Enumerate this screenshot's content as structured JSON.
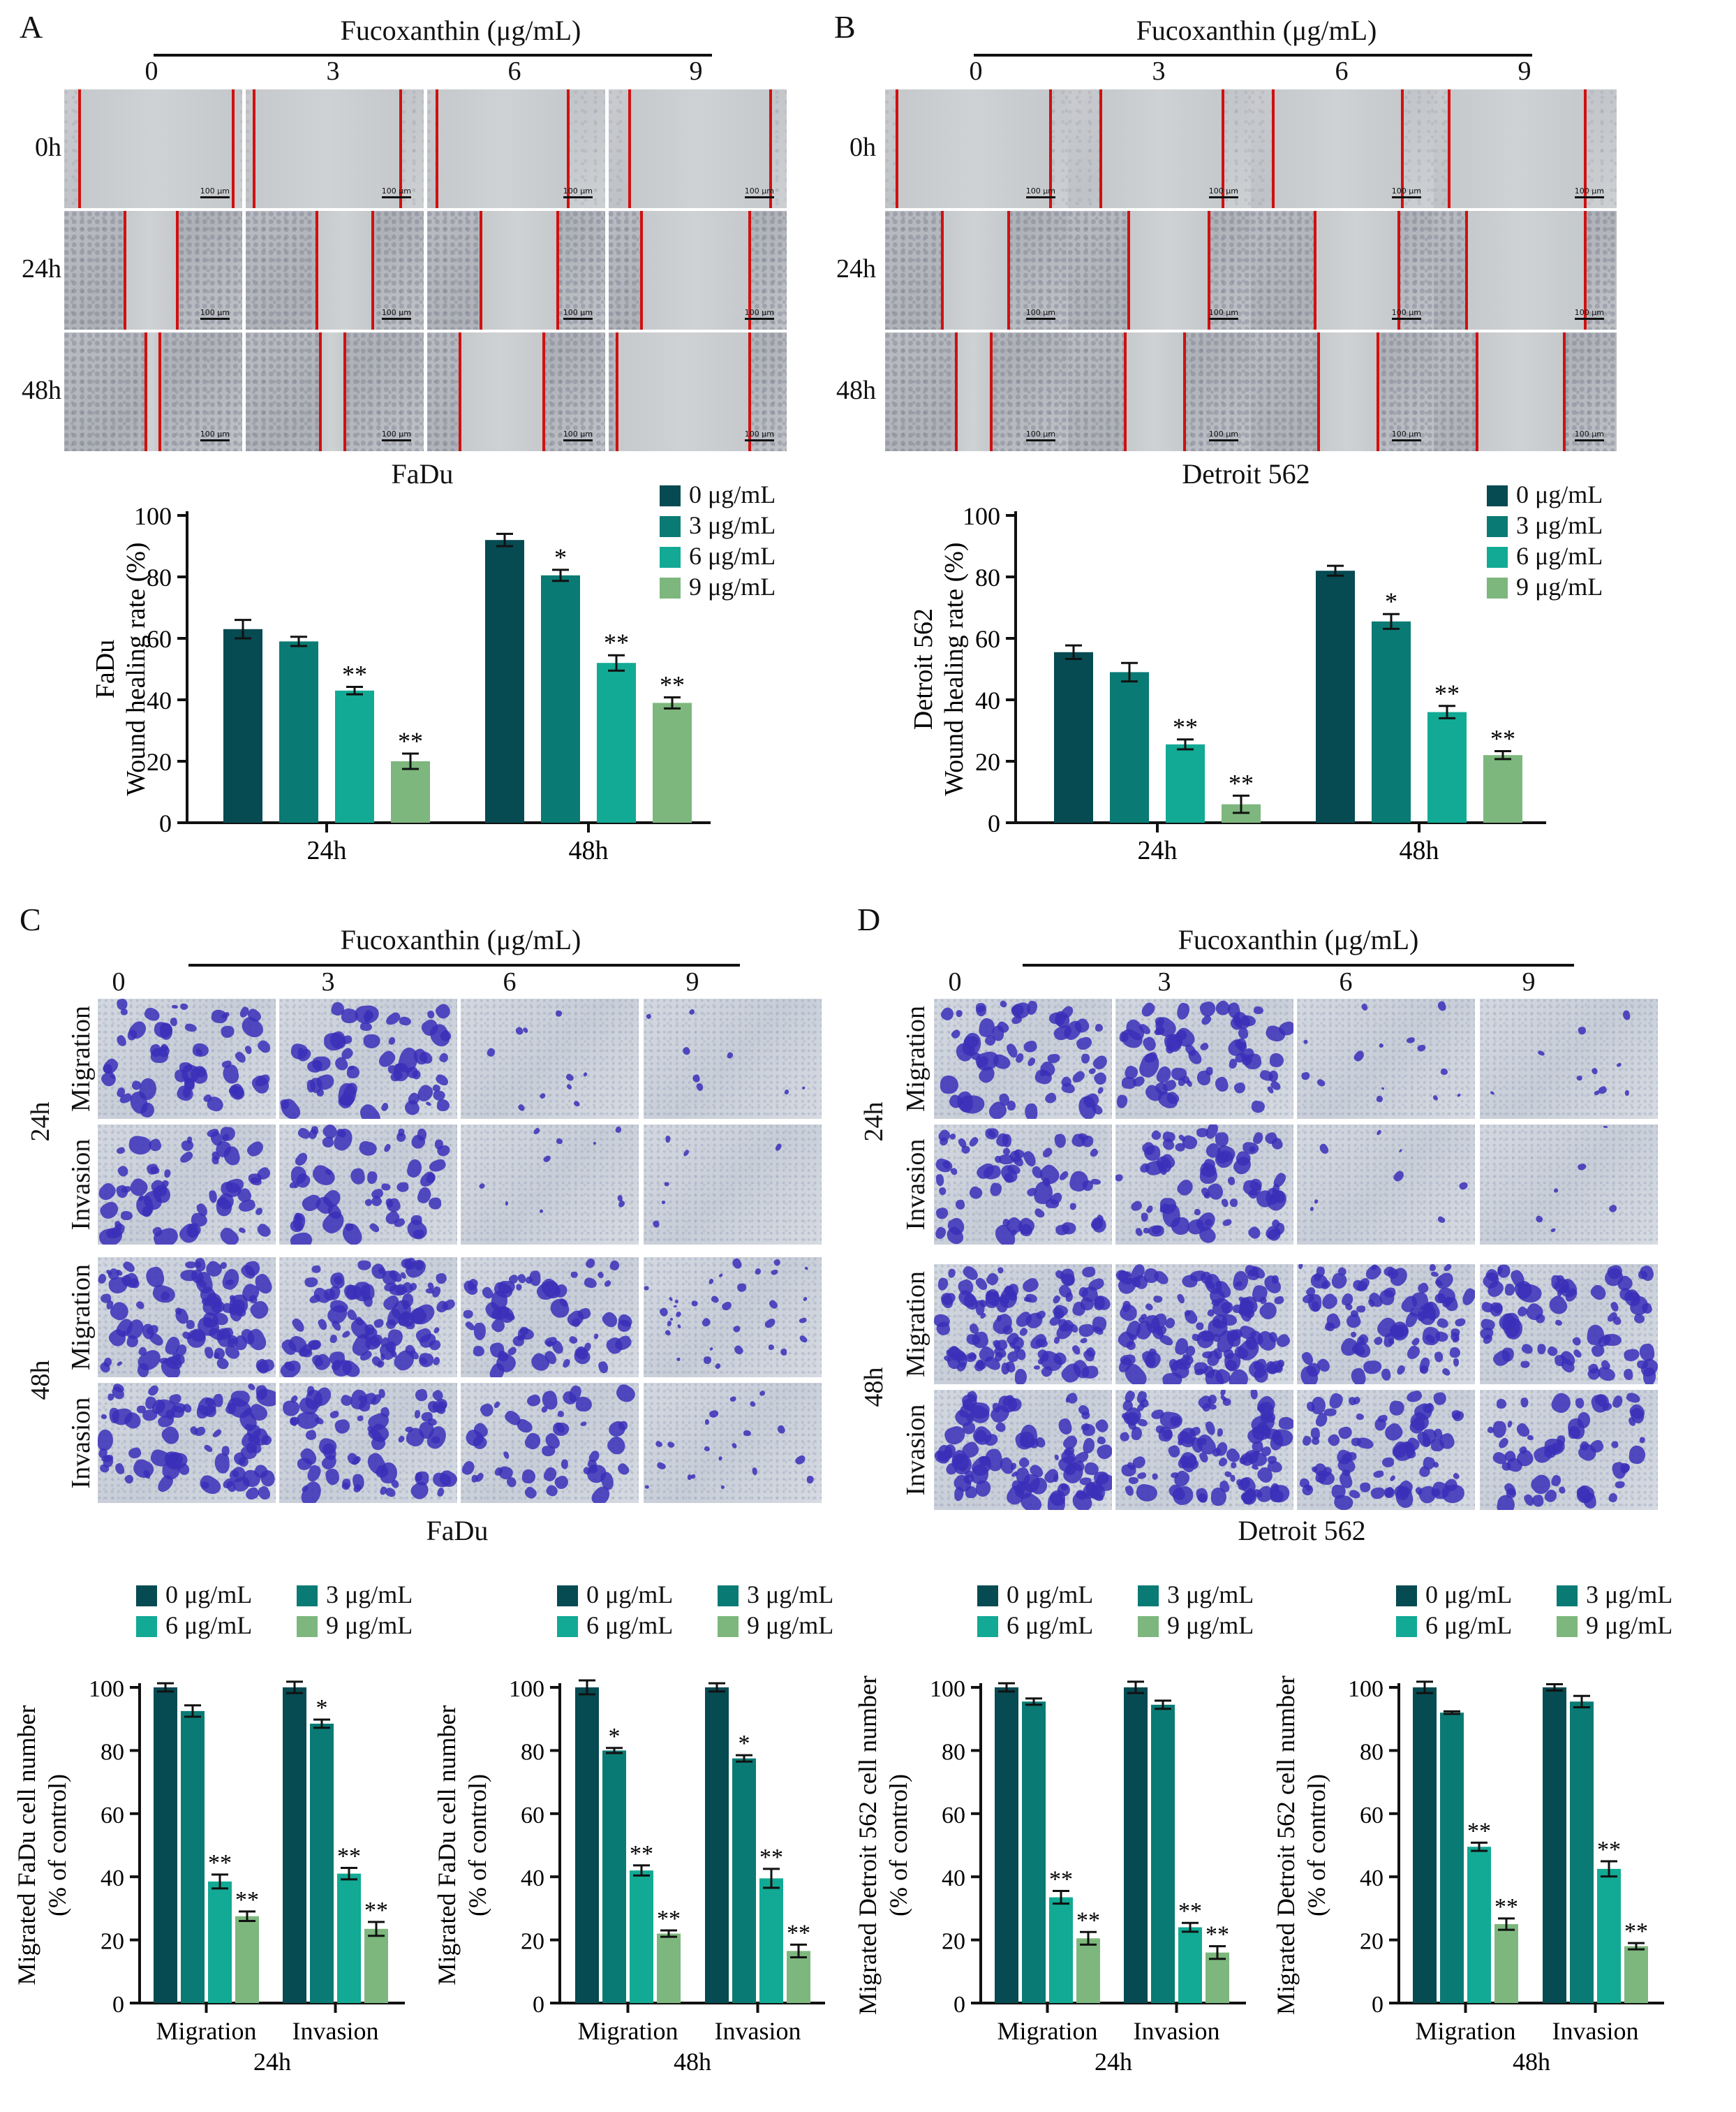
{
  "panel_labels": {
    "a": "A",
    "b": "B",
    "c": "C",
    "d": "D"
  },
  "treatment_title": "Fucoxanthin (μg/mL)",
  "doses": [
    "0",
    "3",
    "6",
    "9"
  ],
  "scale_label": "100 μm",
  "wound_rows": [
    "0h",
    "24h",
    "48h"
  ],
  "transwell": {
    "time_24": "24h",
    "time_48": "48h",
    "migration": "Migration",
    "invasion": "Invasion"
  },
  "captions": {
    "fadu": "FaDu",
    "detroit": "Detroit 562"
  },
  "legend": [
    "0 μg/mL",
    "3 μg/mL",
    "6 μg/mL",
    "9 μg/mL"
  ],
  "colors": {
    "d0": "#064A52",
    "d3": "#0A7A74",
    "d6": "#12AA94",
    "d9": "#7DB77D"
  },
  "chart_data": [
    {
      "id": "A",
      "type": "bar",
      "categories": [
        "24h",
        "48h"
      ],
      "ylabel": [
        "FaDu",
        "Wound healing rate (%)"
      ],
      "ylim": [
        0,
        100
      ],
      "yticks": [
        0,
        20,
        40,
        60,
        80,
        100
      ],
      "series": [
        {
          "name": "0 μg/mL",
          "values": [
            63,
            92
          ],
          "err": [
            3,
            2
          ],
          "sig": [
            "",
            ""
          ]
        },
        {
          "name": "3 μg/mL",
          "values": [
            59,
            80.5
          ],
          "err": [
            1.5,
            1.8
          ],
          "sig": [
            "",
            "*"
          ]
        },
        {
          "name": "6 μg/mL",
          "values": [
            43,
            52
          ],
          "err": [
            1.2,
            2.5
          ],
          "sig": [
            "**",
            "**"
          ]
        },
        {
          "name": "9 μg/mL",
          "values": [
            20,
            39
          ],
          "err": [
            2.5,
            1.8
          ],
          "sig": [
            "**",
            "**"
          ]
        }
      ]
    },
    {
      "id": "B",
      "type": "bar",
      "categories": [
        "24h",
        "48h"
      ],
      "ylabel": [
        "Detroit 562",
        "Wound healing rate (%)"
      ],
      "ylim": [
        0,
        100
      ],
      "yticks": [
        0,
        20,
        40,
        60,
        80,
        100
      ],
      "series": [
        {
          "name": "0 μg/mL",
          "values": [
            55.5,
            82
          ],
          "err": [
            2.2,
            1.6
          ],
          "sig": [
            "",
            ""
          ]
        },
        {
          "name": "3 μg/mL",
          "values": [
            49,
            65.5
          ],
          "err": [
            3,
            2.4
          ],
          "sig": [
            "",
            "*"
          ]
        },
        {
          "name": "6 μg/mL",
          "values": [
            25.5,
            36
          ],
          "err": [
            1.6,
            2
          ],
          "sig": [
            "**",
            "**"
          ]
        },
        {
          "name": "9 μg/mL",
          "values": [
            6,
            22
          ],
          "err": [
            2.8,
            1.3
          ],
          "sig": [
            "**",
            "**"
          ]
        }
      ]
    },
    {
      "id": "C1",
      "type": "bar",
      "categories": [
        "Migration",
        "Invasion"
      ],
      "timepoint": "24h",
      "ylabel": [
        "Migrated FaDu cell number",
        "(% of control)"
      ],
      "ylim": [
        0,
        100
      ],
      "yticks": [
        0,
        20,
        40,
        60,
        80,
        100
      ],
      "series": [
        {
          "name": "0 μg/mL",
          "values": [
            100,
            100
          ],
          "err": [
            1.3,
            1.8
          ],
          "sig": [
            "",
            ""
          ]
        },
        {
          "name": "3 μg/mL",
          "values": [
            92.5,
            88.5
          ],
          "err": [
            1.8,
            1.3
          ],
          "sig": [
            "",
            "*"
          ]
        },
        {
          "name": "6 μg/mL",
          "values": [
            38.5,
            41
          ],
          "err": [
            2.2,
            1.8
          ],
          "sig": [
            "**",
            "**"
          ]
        },
        {
          "name": "9 μg/mL",
          "values": [
            27.5,
            23.5
          ],
          "err": [
            1.5,
            2.2
          ],
          "sig": [
            "**",
            "**"
          ]
        }
      ]
    },
    {
      "id": "C2",
      "type": "bar",
      "categories": [
        "Migration",
        "Invasion"
      ],
      "timepoint": "48h",
      "ylabel": [
        "Migrated FaDu cell number",
        "(% of control)"
      ],
      "ylim": [
        0,
        100
      ],
      "yticks": [
        0,
        20,
        40,
        60,
        80,
        100
      ],
      "series": [
        {
          "name": "0 μg/mL",
          "values": [
            100,
            100
          ],
          "err": [
            2.2,
            1.3
          ],
          "sig": [
            "",
            ""
          ]
        },
        {
          "name": "3 μg/mL",
          "values": [
            80,
            77.5
          ],
          "err": [
            0.8,
            1
          ],
          "sig": [
            "*",
            "*"
          ]
        },
        {
          "name": "6 μg/mL",
          "values": [
            42,
            39.5
          ],
          "err": [
            1.6,
            3
          ],
          "sig": [
            "**",
            "**"
          ]
        },
        {
          "name": "9 μg/mL",
          "values": [
            22,
            16.5
          ],
          "err": [
            1,
            2
          ],
          "sig": [
            "**",
            "**"
          ]
        }
      ]
    },
    {
      "id": "D1",
      "type": "bar",
      "categories": [
        "Migration",
        "Invasion"
      ],
      "timepoint": "24h",
      "ylabel": [
        "Migrated Detroit 562 cell number",
        "(% of control)"
      ],
      "ylim": [
        0,
        100
      ],
      "yticks": [
        0,
        20,
        40,
        60,
        80,
        100
      ],
      "series": [
        {
          "name": "0 μg/mL",
          "values": [
            100,
            100
          ],
          "err": [
            1.3,
            1.8
          ],
          "sig": [
            "",
            ""
          ]
        },
        {
          "name": "3 μg/mL",
          "values": [
            95.5,
            94.5
          ],
          "err": [
            1,
            1.3
          ],
          "sig": [
            "",
            ""
          ]
        },
        {
          "name": "6 μg/mL",
          "values": [
            33.5,
            24
          ],
          "err": [
            2,
            1.4
          ],
          "sig": [
            "**",
            "**"
          ]
        },
        {
          "name": "9 μg/mL",
          "values": [
            20.5,
            16
          ],
          "err": [
            2,
            2
          ],
          "sig": [
            "**",
            "**"
          ]
        }
      ]
    },
    {
      "id": "D2",
      "type": "bar",
      "categories": [
        "Migration",
        "Invasion"
      ],
      "timepoint": "48h",
      "ylabel": [
        "Migrated Detroit 562 cell number",
        "(% of control)"
      ],
      "ylim": [
        0,
        100
      ],
      "yticks": [
        0,
        20,
        40,
        60,
        80,
        100
      ],
      "series": [
        {
          "name": "0 μg/mL",
          "values": [
            100,
            100
          ],
          "err": [
            1.8,
            1
          ],
          "sig": [
            "",
            ""
          ]
        },
        {
          "name": "3 μg/mL",
          "values": [
            92,
            95.5
          ],
          "err": [
            0.4,
            1.8
          ],
          "sig": [
            "",
            ""
          ]
        },
        {
          "name": "6 μg/mL",
          "values": [
            49.5,
            42.5
          ],
          "err": [
            1.3,
            2.4
          ],
          "sig": [
            "**",
            "**"
          ]
        },
        {
          "name": "9 μg/mL",
          "values": [
            25,
            18
          ],
          "err": [
            1.8,
            1
          ],
          "sig": [
            "**",
            "**"
          ]
        }
      ]
    }
  ]
}
